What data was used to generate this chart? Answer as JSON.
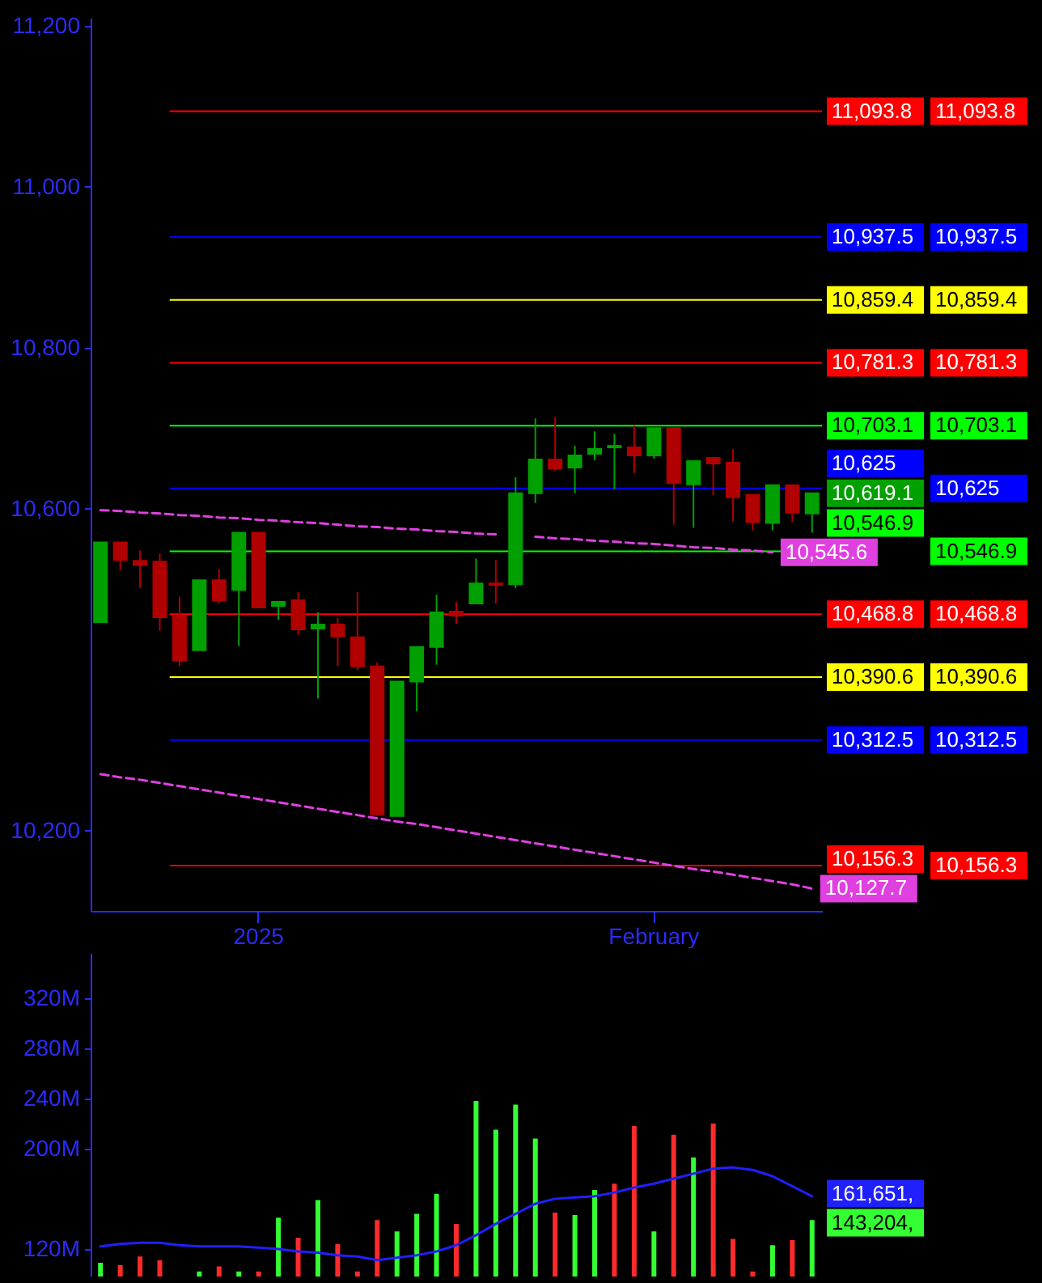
{
  "chart_data": [
    {
      "type": "candlestick",
      "categories": [
        null,
        null,
        null,
        null,
        null,
        null,
        null,
        null,
        "2025",
        null,
        null,
        null,
        null,
        null,
        null,
        null,
        null,
        null,
        null,
        null,
        null,
        null,
        null,
        null,
        null,
        null,
        null,
        null,
        "February",
        null,
        null,
        null,
        null,
        null,
        null,
        null,
        null
      ],
      "ohlc": [
        [
          10459,
          10558,
          10459,
          10558
        ],
        [
          10558,
          10558,
          10523,
          10536
        ],
        [
          10535,
          10548,
          10501,
          10530
        ],
        [
          10534,
          10544,
          10448,
          10465
        ],
        [
          10466,
          10490,
          10404,
          10411
        ],
        [
          10424,
          10511,
          10424,
          10511
        ],
        [
          10511,
          10525,
          10482,
          10486
        ],
        [
          10499,
          10570,
          10429,
          10570
        ],
        [
          10570,
          10570,
          10477,
          10477
        ],
        [
          10479,
          10484,
          10462,
          10484
        ],
        [
          10486,
          10496,
          10443,
          10450
        ],
        [
          10451,
          10471,
          10364,
          10456
        ],
        [
          10456,
          10464,
          10404,
          10441
        ],
        [
          10440,
          10496,
          10399,
          10404
        ],
        [
          10404,
          10409,
          10218,
          10220
        ],
        [
          10218,
          10385,
          10218,
          10385
        ],
        [
          10385,
          10428,
          10348,
          10428
        ],
        [
          10428,
          10493,
          10406,
          10471
        ],
        [
          10472,
          10484,
          10457,
          10467
        ],
        [
          10482,
          10538,
          10482,
          10507
        ],
        [
          10507,
          10536,
          10482,
          10505
        ],
        [
          10506,
          10639,
          10501,
          10619
        ],
        [
          10619,
          10712,
          10607,
          10661
        ],
        [
          10661,
          10714,
          10647,
          10650
        ],
        [
          10651,
          10678,
          10619,
          10666
        ],
        [
          10668,
          10696,
          10660,
          10674
        ],
        [
          10676,
          10693,
          10624,
          10678
        ],
        [
          10676,
          10703,
          10644,
          10666
        ],
        [
          10666,
          10700,
          10662,
          10700
        ],
        [
          10700,
          10700,
          10580,
          10632
        ],
        [
          10630,
          10659,
          10576,
          10659
        ],
        [
          10663,
          10663,
          10617,
          10656
        ],
        [
          10657,
          10674,
          10584,
          10614
        ],
        [
          10617,
          10617,
          10573,
          10583
        ],
        [
          10582,
          10629,
          10573,
          10629
        ],
        [
          10629,
          10629,
          10583,
          10595
        ],
        [
          10594,
          10619.1,
          10570,
          10619.1
        ]
      ],
      "colors": [
        "#00a000",
        "#b00000",
        "#b00000",
        "#b00000",
        "#b00000",
        "#00a000",
        "#b00000",
        "#00a000",
        "#b00000",
        "#00a000",
        "#b00000",
        "#00a000",
        "#b00000",
        "#b00000",
        "#b00000",
        "#00a000",
        "#00a000",
        "#00a000",
        "#b00000",
        "#00a000",
        "#b00000",
        "#00a000",
        "#00a000",
        "#b00000",
        "#00a000",
        "#00a000",
        "#00a000",
        "#b00000",
        "#00a000",
        "#b00000",
        "#00a000",
        "#b00000",
        "#b00000",
        "#b00000",
        "#00a000",
        "#b00000",
        "#00a000"
      ],
      "series": [
        {
          "type": "line",
          "color": "#e040e0",
          "line_style": "dashed",
          "values": [
            10598,
            10597,
            10595,
            10594,
            10592,
            10591,
            10589,
            10588,
            10586,
            10585,
            10583,
            10582,
            10580,
            10578,
            10577,
            10575,
            10574,
            10572,
            10571,
            10569,
            10568,
            null,
            10565,
            10563,
            10562,
            10560,
            10559,
            10557,
            10556,
            10554,
            10552,
            10551,
            10549,
            10548,
            10545.6,
            null,
            null
          ],
          "value_labels": [
            null,
            null,
            null,
            null,
            null,
            null,
            null,
            null,
            null,
            null,
            null,
            null,
            null,
            null,
            null,
            null,
            null,
            null,
            null,
            null,
            null,
            null,
            null,
            null,
            null,
            null,
            null,
            null,
            null,
            null,
            null,
            null,
            null,
            null,
            "10,545.6",
            null,
            null
          ]
        },
        {
          "type": "line",
          "color": "#e040e0",
          "line_style": "dashed",
          "values": [
            10270,
            10266,
            10263,
            10259,
            10255,
            10251,
            10247,
            10243,
            10239,
            10235,
            10231,
            10227,
            10223,
            10219,
            10215,
            10211,
            10208,
            10204,
            10200,
            10196,
            10192,
            10188,
            10184,
            10180,
            10176,
            10172,
            10168,
            10164,
            10160,
            10156,
            10152,
            10149,
            10145,
            10141,
            10137,
            10133,
            10127.7
          ],
          "value_labels": [
            null,
            null,
            null,
            null,
            null,
            null,
            null,
            null,
            null,
            null,
            null,
            null,
            null,
            null,
            null,
            null,
            null,
            null,
            null,
            null,
            null,
            null,
            null,
            null,
            null,
            null,
            null,
            null,
            null,
            null,
            null,
            null,
            null,
            null,
            null,
            null,
            "10,127.7"
          ]
        }
      ],
      "ylim": [
        10100,
        11210
      ],
      "yticks": [
        {
          "value": 10200,
          "label": "10,200"
        },
        {
          "value": 10600,
          "label": "10,600"
        },
        {
          "value": 10800,
          "label": "10,800"
        },
        {
          "value": 11000,
          "label": "11,000"
        },
        {
          "value": 11200,
          "label": "11,200"
        }
      ],
      "ref_lines": [
        {
          "axis": "y",
          "value": 11093.8,
          "label": "11,093.8",
          "color": "#ff0000"
        },
        {
          "axis": "y",
          "value": 10937.5,
          "label": "10,937.5",
          "color": "#0000ff"
        },
        {
          "axis": "y",
          "value": 10859.4,
          "label": "10,859.4",
          "color": "#ffff00"
        },
        {
          "axis": "y",
          "value": 10781.3,
          "label": "10,781.3",
          "color": "#ff0000"
        },
        {
          "axis": "y",
          "value": 10703.1,
          "label": "10,703.1",
          "color": "#00ff00"
        },
        {
          "axis": "y",
          "value": 10625,
          "label": "10,625",
          "color": "#0000ff"
        },
        {
          "axis": "y",
          "value": 10546.9,
          "label": "10,546.9",
          "color": "#00ff00"
        },
        {
          "axis": "y",
          "value": 10468.8,
          "label": "10,468.8",
          "color": "#ff0000"
        },
        {
          "axis": "y",
          "value": 10390.6,
          "label": "10,390.6",
          "color": "#ffff00"
        },
        {
          "axis": "y",
          "value": 10312.5,
          "label": "10,312.5",
          "color": "#0000ff"
        },
        {
          "axis": "y",
          "value": 10156.3,
          "label": "10,156.3",
          "color": "#ff0000"
        }
      ],
      "annotations": [
        "10,619.1"
      ]
    },
    {
      "type": "bar",
      "categories": [
        null,
        null,
        null,
        null,
        null,
        null,
        null,
        null,
        null,
        null,
        null,
        null,
        null,
        null,
        null,
        null,
        null,
        null,
        null,
        null,
        null,
        null,
        null,
        null,
        null,
        null,
        null,
        null,
        null,
        null,
        null,
        null,
        null,
        null,
        null,
        null,
        null
      ],
      "series": [
        {
          "values": [
            109,
            107,
            114,
            111,
            null,
            102,
            106,
            102,
            102,
            145,
            129,
            159,
            124,
            102,
            143,
            134,
            148,
            164,
            140,
            238,
            215,
            235,
            208,
            149,
            147,
            167,
            172,
            218,
            134,
            211,
            193,
            220,
            128,
            102,
            123,
            127,
            143
          ],
          "colors": [
            "#33ff33",
            "#ff2a2a",
            "#ff2a2a",
            "#ff2a2a",
            null,
            "#33ff33",
            "#ff2a2a",
            "#33ff33",
            "#ff2a2a",
            "#33ff33",
            "#ff2a2a",
            "#33ff33",
            "#ff2a2a",
            "#ff2a2a",
            "#ff2a2a",
            "#33ff33",
            "#33ff33",
            "#33ff33",
            "#ff2a2a",
            "#33ff33",
            "#33ff33",
            "#33ff33",
            "#33ff33",
            "#ff2a2a",
            "#33ff33",
            "#33ff33",
            "#ff2a2a",
            "#ff2a2a",
            "#33ff33",
            "#ff2a2a",
            "#33ff33",
            "#ff2a2a",
            "#ff2a2a",
            "#ff2a2a",
            "#33ff33",
            "#ff2a2a",
            "#33ff33"
          ]
        },
        {
          "type": "line",
          "color": "#2020ff",
          "values": [
            122,
            124,
            125,
            125,
            123,
            122,
            122,
            122,
            121,
            120,
            118,
            117,
            115,
            114,
            111,
            113,
            115,
            118,
            123,
            131,
            140,
            148,
            156,
            160,
            161,
            162,
            165,
            169,
            172,
            176,
            180,
            184,
            185,
            183,
            178,
            170,
            162
          ]
        }
      ],
      "ylim": [
        98,
        356
      ],
      "yticks": [
        {
          "value": 120,
          "label": "120M"
        },
        {
          "value": 200,
          "label": "200M"
        },
        {
          "value": 240,
          "label": "240M"
        },
        {
          "value": 280,
          "label": "280M"
        },
        {
          "value": 320,
          "label": "320M"
        }
      ],
      "tick_labels": "y",
      "annotations": [
        "143,204,",
        "161,651,"
      ]
    }
  ]
}
